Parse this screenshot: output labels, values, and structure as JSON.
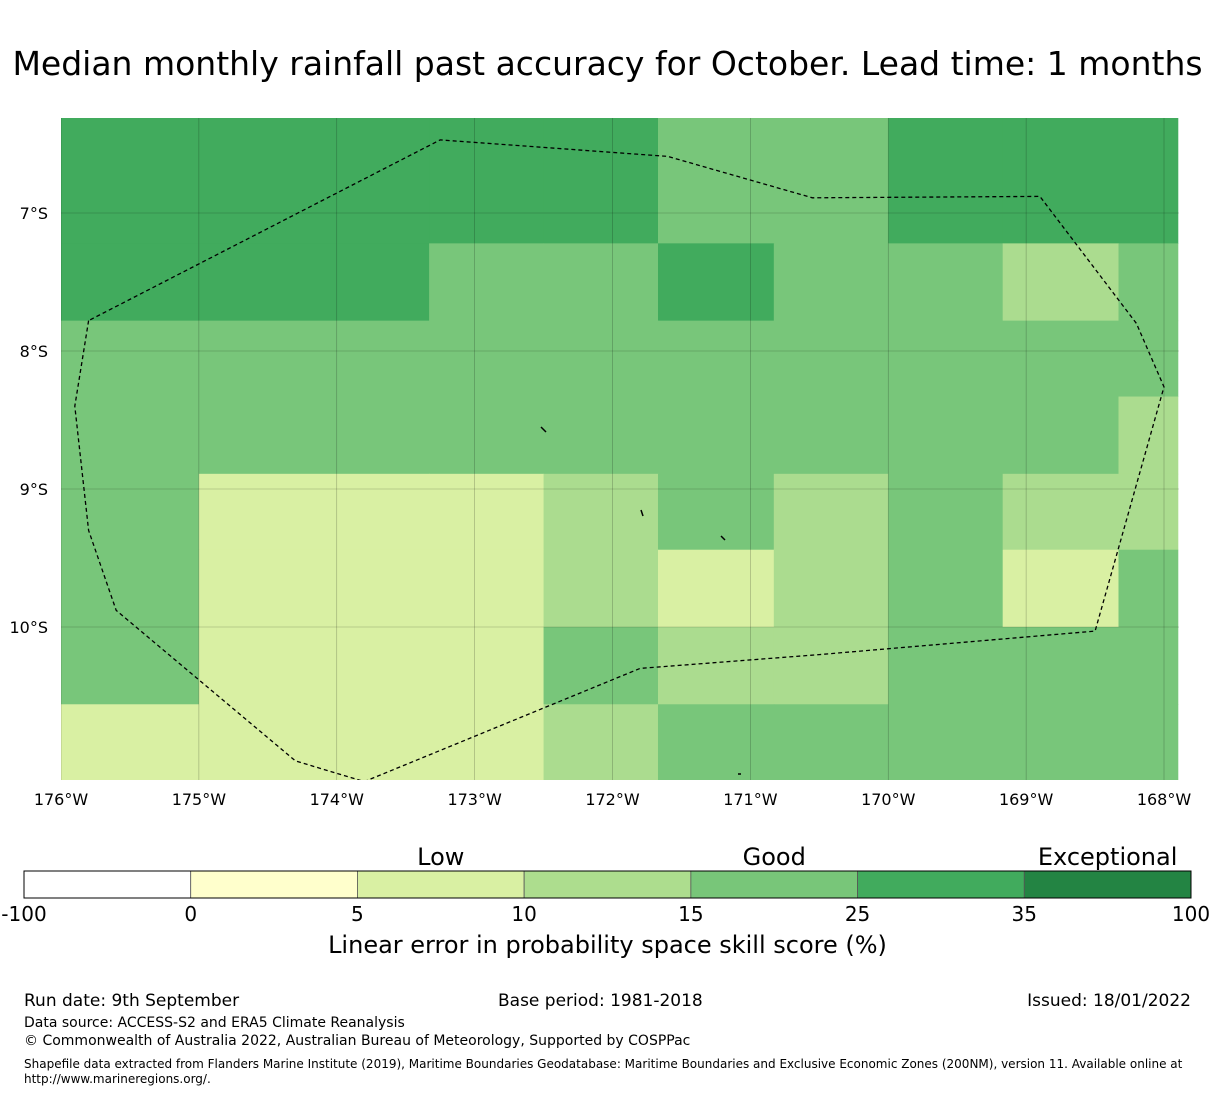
{
  "title": "Median monthly rainfall past accuracy for October. Lead time: 1 months",
  "map": {
    "lon_range": [
      -176,
      -167.9
    ],
    "lat_range": [
      -11.15,
      -6.3
    ],
    "lat_ticks": [
      {
        "value": -7,
        "label": "7°S"
      },
      {
        "value": -8,
        "label": "8°S"
      },
      {
        "value": -9,
        "label": "9°S"
      },
      {
        "value": -10,
        "label": "10°S"
      }
    ],
    "lon_ticks": [
      {
        "value": -176,
        "label": "176°W"
      },
      {
        "value": -175,
        "label": "175°W"
      },
      {
        "value": -174,
        "label": "174°W"
      },
      {
        "value": -173,
        "label": "173°W"
      },
      {
        "value": -172,
        "label": "172°W"
      },
      {
        "value": -171,
        "label": "171°W"
      },
      {
        "value": -170,
        "label": "170°W"
      },
      {
        "value": -169,
        "label": "169°W"
      },
      {
        "value": -168,
        "label": "168°W"
      }
    ],
    "grid": true,
    "cell_size_deg": {
      "lon": 0.833,
      "lat": 0.556
    },
    "cell_class_colors": {
      "c10_15": "#abdc8f",
      "c15_25": "#78c67a",
      "c25_35": "#41ab5d",
      "c5_10": "#d9f0a3"
    },
    "skill_grid": {
      "description": "rows from north to south, columns from west to east",
      "lon_edges": [
        -176.15,
        -175.0,
        -173.33,
        -172.5,
        -171.67,
        -170.83,
        -170.0,
        -169.17,
        -168.33,
        -167.9
      ],
      "lat_edges": [
        -6.3,
        -7.22,
        -7.78,
        -8.33,
        -8.89,
        -9.44,
        -10.0,
        -10.56,
        -11.15
      ],
      "rows": [
        [
          "c25_35",
          "c25_35",
          "c25_35",
          "c25_35",
          "c15_25",
          "c15_25",
          "c25_35",
          "c25_35",
          "c25_35"
        ],
        [
          "c25_35",
          "c25_35",
          "c15_25",
          "c15_25",
          "c25_35",
          "c15_25",
          "c15_25",
          "c10_15",
          "c15_25"
        ],
        [
          "c15_25",
          "c15_25",
          "c15_25",
          "c15_25",
          "c15_25",
          "c15_25",
          "c15_25",
          "c15_25",
          "c15_25"
        ],
        [
          "c15_25",
          "c15_25",
          "c15_25",
          "c15_25",
          "c15_25",
          "c15_25",
          "c15_25",
          "c15_25",
          "c10_15"
        ],
        [
          "c15_25",
          "c5_10",
          "c5_10",
          "c10_15",
          "c15_25",
          "c10_15",
          "c15_25",
          "c10_15",
          "c10_15"
        ],
        [
          "c15_25",
          "c5_10",
          "c5_10",
          "c10_15",
          "c5_10",
          "c10_15",
          "c15_25",
          "c5_10",
          "c15_25"
        ],
        [
          "c15_25",
          "c5_10",
          "c5_10",
          "c15_25",
          "c10_15",
          "c10_15",
          "c15_25",
          "c15_25",
          "c15_25"
        ],
        [
          "c5_10",
          "c5_10",
          "c5_10",
          "c10_15",
          "c15_25",
          "c15_25",
          "c15_25",
          "c15_25",
          "c15_25"
        ]
      ]
    },
    "eez_boundary": [
      [
        -175.8,
        -7.78
      ],
      [
        -175.9,
        -8.4
      ],
      [
        -175.8,
        -9.3
      ],
      [
        -175.6,
        -9.88
      ],
      [
        -174.3,
        -10.97
      ],
      [
        -173.8,
        -11.12
      ],
      [
        -171.8,
        -10.3
      ],
      [
        -170.5,
        -10.2
      ],
      [
        -168.5,
        -10.03
      ],
      [
        -168.0,
        -8.26
      ],
      [
        -168.2,
        -7.8
      ],
      [
        -168.9,
        -6.88
      ],
      [
        -170.55,
        -6.89
      ],
      [
        -171.6,
        -6.59
      ],
      [
        -173.25,
        -6.47
      ],
      [
        -175.8,
        -7.78
      ]
    ]
  },
  "colorbar": {
    "categories": [
      {
        "label": "Low",
        "at": 5
      },
      {
        "label": "Good",
        "at": 15
      },
      {
        "label": "Exceptional",
        "at": 35
      }
    ],
    "boundaries": [
      "-100",
      "0",
      "5",
      "10",
      "15",
      "25",
      "35",
      "100"
    ],
    "colors": [
      "#ffffff",
      "#ffffcc",
      "#d9f0a3",
      "#addd8e",
      "#78c679",
      "#41ab5d",
      "#238443"
    ],
    "label": "Linear error in probability space skill score (%)"
  },
  "footer": {
    "run_date": "Run date: 9th September",
    "base_period": "Base period: 1981-2018",
    "issued": "Issued: 18/01/2022",
    "data_source": "Data source: ACCESS-S2 and ERA5 Climate Reanalysis",
    "copyright": "© Commonwealth of Australia 2022, Australian Bureau of Meteorology, Supported by COSPPac",
    "shapefile_line1": "Shapefile data extracted from Flanders Marine Institute (2019), Maritime Boundaries Geodatabase: Maritime Boundaries and Exclusive Economic Zones (200NM), version 11. Available online at",
    "shapefile_line2": "http://www.marineregions.org/."
  }
}
